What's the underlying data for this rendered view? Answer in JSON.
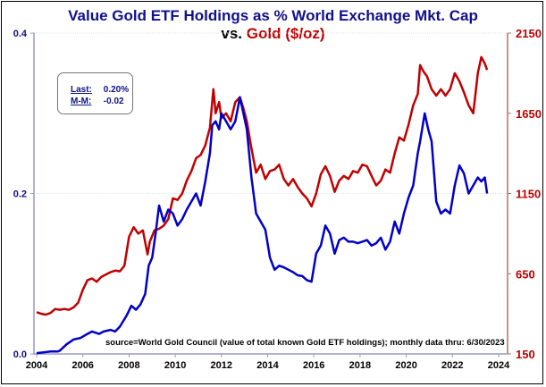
{
  "chart_data": {
    "type": "line",
    "title": "Value Gold ETF Holdings as % World Exchange Mkt. Cap",
    "subtitle_prefix": "vs.",
    "subtitle_series": "Gold ($/oz)",
    "annotation": "source=World Gold Council (value of total known Gold ETF holdings); monthly data thru:  6/30/2023",
    "stats": {
      "last_label": "Last:",
      "last_value": "0.20%",
      "mm_label": "M-M:",
      "mm_value": "-0.02"
    },
    "x_ticks": [
      "2004",
      "2006",
      "2008",
      "2010",
      "2012",
      "2014",
      "2016",
      "2018",
      "2020",
      "2022",
      "2024"
    ],
    "xlim": [
      2004,
      2024
    ],
    "y_left": {
      "ticks": [
        "0.0",
        "0.2",
        "0.4"
      ],
      "lim": [
        0,
        0.4
      ],
      "color": "#10108a"
    },
    "y_right": {
      "ticks": [
        "150",
        "650",
        "1150",
        "1650",
        "2150"
      ],
      "lim": [
        150,
        2150
      ],
      "color": "#c00000"
    },
    "grid": "horizontal",
    "series": [
      {
        "name": "Gold ETF Holdings % World Mkt Cap",
        "axis": "left",
        "color": "#0000c8",
        "x": [
          2004.0,
          2004.3,
          2004.6,
          2004.9,
          2005.0,
          2005.3,
          2005.6,
          2005.9,
          2006.2,
          2006.4,
          2006.7,
          2006.9,
          2007.2,
          2007.4,
          2007.6,
          2007.9,
          2008.1,
          2008.3,
          2008.5,
          2008.7,
          2008.85,
          2009.0,
          2009.15,
          2009.3,
          2009.5,
          2009.7,
          2009.9,
          2010.1,
          2010.3,
          2010.5,
          2010.7,
          2010.9,
          2011.1,
          2011.3,
          2011.5,
          2011.6,
          2011.75,
          2011.9,
          2012.0,
          2012.2,
          2012.4,
          2012.6,
          2012.8,
          2012.95,
          2013.1,
          2013.3,
          2013.5,
          2013.7,
          2013.9,
          2014.1,
          2014.3,
          2014.5,
          2014.7,
          2014.9,
          2015.1,
          2015.3,
          2015.5,
          2015.7,
          2015.9,
          2016.1,
          2016.3,
          2016.5,
          2016.7,
          2016.9,
          2017.1,
          2017.3,
          2017.5,
          2017.7,
          2017.9,
          2018.1,
          2018.3,
          2018.5,
          2018.7,
          2018.9,
          2019.1,
          2019.3,
          2019.5,
          2019.7,
          2019.9,
          2020.1,
          2020.3,
          2020.5,
          2020.6,
          2020.8,
          2020.95,
          2021.1,
          2021.3,
          2021.5,
          2021.7,
          2021.9,
          2022.1,
          2022.3,
          2022.5,
          2022.7,
          2022.9,
          2023.1,
          2023.25,
          2023.4,
          2023.5
        ],
        "y": [
          0.001,
          0.002,
          0.003,
          0.003,
          0.004,
          0.012,
          0.018,
          0.02,
          0.025,
          0.028,
          0.025,
          0.028,
          0.03,
          0.028,
          0.034,
          0.048,
          0.06,
          0.055,
          0.062,
          0.075,
          0.11,
          0.12,
          0.15,
          0.185,
          0.165,
          0.18,
          0.175,
          0.16,
          0.168,
          0.18,
          0.19,
          0.2,
          0.185,
          0.215,
          0.25,
          0.285,
          0.29,
          0.28,
          0.3,
          0.29,
          0.28,
          0.29,
          0.32,
          0.3,
          0.28,
          0.22,
          0.175,
          0.165,
          0.155,
          0.12,
          0.105,
          0.11,
          0.108,
          0.105,
          0.102,
          0.098,
          0.097,
          0.092,
          0.09,
          0.125,
          0.135,
          0.16,
          0.15,
          0.125,
          0.142,
          0.145,
          0.14,
          0.14,
          0.138,
          0.14,
          0.142,
          0.135,
          0.138,
          0.145,
          0.13,
          0.14,
          0.165,
          0.15,
          0.175,
          0.195,
          0.21,
          0.25,
          0.265,
          0.3,
          0.28,
          0.265,
          0.19,
          0.175,
          0.18,
          0.175,
          0.21,
          0.235,
          0.225,
          0.2,
          0.21,
          0.22,
          0.215,
          0.22,
          0.2
        ]
      },
      {
        "name": "Gold ($/oz)",
        "axis": "right",
        "color": "#c00000",
        "x": [
          2004.0,
          2004.2,
          2004.4,
          2004.6,
          2004.8,
          2005.0,
          2005.2,
          2005.4,
          2005.6,
          2005.8,
          2006.0,
          2006.2,
          2006.4,
          2006.6,
          2006.8,
          2007.0,
          2007.2,
          2007.4,
          2007.6,
          2007.8,
          2008.0,
          2008.2,
          2008.4,
          2008.6,
          2008.8,
          2008.9,
          2009.1,
          2009.3,
          2009.5,
          2009.7,
          2009.9,
          2010.1,
          2010.3,
          2010.5,
          2010.7,
          2010.9,
          2011.1,
          2011.3,
          2011.5,
          2011.65,
          2011.75,
          2011.9,
          2012.0,
          2012.2,
          2012.4,
          2012.6,
          2012.8,
          2012.95,
          2013.1,
          2013.3,
          2013.5,
          2013.7,
          2013.9,
          2014.1,
          2014.3,
          2014.5,
          2014.7,
          2014.9,
          2015.1,
          2015.3,
          2015.5,
          2015.7,
          2015.9,
          2016.1,
          2016.3,
          2016.5,
          2016.7,
          2016.9,
          2017.1,
          2017.3,
          2017.5,
          2017.7,
          2017.9,
          2018.1,
          2018.3,
          2018.5,
          2018.7,
          2018.9,
          2019.1,
          2019.3,
          2019.5,
          2019.7,
          2019.9,
          2020.1,
          2020.3,
          2020.5,
          2020.6,
          2020.75,
          2020.9,
          2021.1,
          2021.3,
          2021.5,
          2021.7,
          2021.9,
          2022.1,
          2022.3,
          2022.5,
          2022.7,
          2022.9,
          2023.1,
          2023.25,
          2023.4,
          2023.5
        ],
        "y": [
          410,
          400,
          395,
          405,
          430,
          425,
          430,
          425,
          440,
          470,
          550,
          610,
          620,
          600,
          630,
          645,
          660,
          670,
          665,
          700,
          880,
          940,
          900,
          920,
          770,
          850,
          920,
          930,
          950,
          990,
          1120,
          1110,
          1150,
          1230,
          1290,
          1370,
          1390,
          1450,
          1560,
          1800,
          1650,
          1720,
          1620,
          1650,
          1600,
          1720,
          1750,
          1680,
          1600,
          1430,
          1280,
          1330,
          1240,
          1290,
          1300,
          1330,
          1240,
          1200,
          1240,
          1190,
          1150,
          1120,
          1070,
          1150,
          1270,
          1320,
          1260,
          1160,
          1230,
          1260,
          1240,
          1290,
          1280,
          1330,
          1320,
          1260,
          1200,
          1230,
          1300,
          1280,
          1400,
          1500,
          1480,
          1580,
          1700,
          1770,
          1950,
          1910,
          1880,
          1800,
          1760,
          1800,
          1760,
          1800,
          1900,
          1850,
          1780,
          1700,
          1650,
          1900,
          2000,
          1960,
          1920
        ]
      }
    ]
  }
}
